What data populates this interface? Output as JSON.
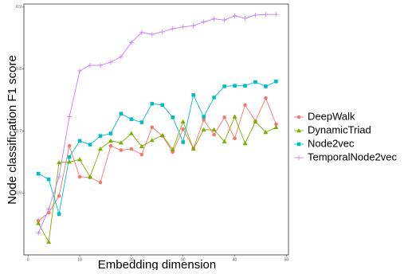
{
  "chart_data": {
    "type": "line",
    "x_label": "Embedding dimension",
    "y_label": "Node classification F1 score",
    "x": [
      2,
      4,
      6,
      8,
      10,
      12,
      14,
      16,
      18,
      20,
      22,
      24,
      26,
      28,
      30,
      32,
      34,
      36,
      38,
      40,
      42,
      44,
      46,
      48
    ],
    "xlim": [
      -0.8,
      50.4
    ],
    "xticks": [
      0,
      10,
      20,
      30,
      40,
      50
    ],
    "ylim": [
      0.5,
      0.905
    ],
    "yticks": [
      0.6,
      0.7,
      0.8,
      0.9
    ],
    "series": [
      {
        "name": "DeepWalk",
        "color": "#F8766D",
        "marker": "circle",
        "values": [
          0.555,
          0.568,
          0.595,
          0.676,
          0.626,
          0.625,
          0.617,
          0.676,
          0.669,
          0.671,
          0.662,
          0.706,
          0.692,
          0.666,
          0.703,
          0.672,
          0.718,
          0.694,
          0.722,
          0.688,
          0.742,
          0.716,
          0.753,
          0.711
        ]
      },
      {
        "name": "DynamicTriad",
        "color": "#7CAE00",
        "marker": "triangle",
        "values": [
          0.551,
          0.521,
          0.649,
          0.65,
          0.654,
          0.626,
          0.671,
          0.684,
          0.681,
          0.696,
          0.675,
          0.685,
          0.693,
          0.67,
          0.715,
          0.671,
          0.702,
          0.702,
          0.683,
          0.723,
          0.68,
          0.715,
          0.698,
          0.706
        ]
      },
      {
        "name": "Node2vec",
        "color": "#00BFC4",
        "marker": "square",
        "values": [
          0.631,
          0.622,
          0.566,
          0.658,
          0.684,
          0.678,
          0.692,
          0.696,
          0.728,
          0.719,
          0.714,
          0.744,
          0.742,
          0.722,
          0.682,
          0.758,
          0.723,
          0.754,
          0.772,
          0.773,
          0.773,
          0.779,
          0.772,
          0.78
        ]
      },
      {
        "name": "TemporalNode2vec",
        "color": "#C77CFF",
        "marker": "plus",
        "values": [
          0.535,
          0.574,
          0.626,
          0.723,
          0.797,
          0.806,
          0.806,
          0.811,
          0.82,
          0.843,
          0.859,
          0.856,
          0.86,
          0.865,
          0.868,
          0.87,
          0.876,
          0.881,
          0.879,
          0.886,
          0.882,
          0.887,
          0.888,
          0.888
        ]
      }
    ]
  }
}
